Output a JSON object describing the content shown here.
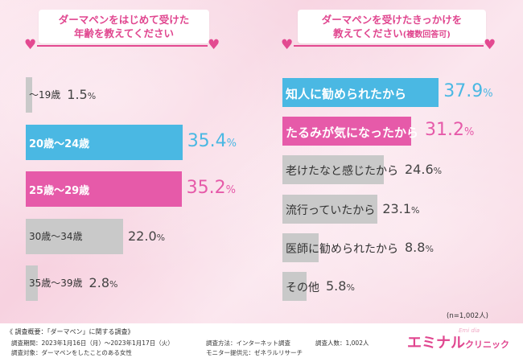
{
  "chart_data": [
    {
      "type": "bar",
      "orientation": "horizontal",
      "title_line1": "ダーマペンをはじめて受けた",
      "title_line2": "年齢を教えてください",
      "unit": "%",
      "categories": [
        "～19歳",
        "20歳～24歳",
        "25歳～29歳",
        "30歳～34歳",
        "35歳～39歳"
      ],
      "values": [
        1.5,
        35.4,
        35.2,
        22.0,
        2.8
      ],
      "value_labels": [
        "1.5",
        "35.4",
        "35.2",
        "22.0",
        "2.8"
      ],
      "bar_colors": [
        "#c9c9c9",
        "#4ab8e3",
        "#e65aa9",
        "#c9c9c9",
        "#c9c9c9"
      ],
      "xlim": [
        0,
        40
      ]
    },
    {
      "type": "bar",
      "orientation": "horizontal",
      "title_line1": "ダーマペンを受けたきっかけを",
      "title_line2": "教えてください",
      "title_suffix": "(複数回答可)",
      "unit": "%",
      "categories": [
        "知人に勧められたから",
        "たるみが気になったから",
        "老けたなと感じたから",
        "流行っていたから",
        "医師に勧められたから",
        "その他"
      ],
      "values": [
        37.9,
        31.2,
        24.6,
        23.1,
        8.8,
        5.8
      ],
      "value_labels": [
        "37.9",
        "31.2",
        "24.6",
        "23.1",
        "8.8",
        "5.8"
      ],
      "bar_colors": [
        "#4ab8e3",
        "#e65aa9",
        "#c9c9c9",
        "#c9c9c9",
        "#c9c9c9",
        "#c9c9c9"
      ],
      "xlim": [
        0,
        40
      ],
      "note": "(n=1,002人)"
    }
  ],
  "footer": {
    "title": "《 調査概要：「ダーマペン」に関する調査》",
    "period": "調査期間：2023年1月16日（月）～2023年1月17日（火）",
    "target": "調査対象：ダーマペンをしたことのある女性",
    "method": "調査方法：インターネット調査",
    "monitor": "モニター提供元：ゼネラルリサーチ",
    "count": "調査人数：1,002人"
  },
  "logo": {
    "main": "エミナル",
    "sub": "クリニック",
    "tag": "Emi dia"
  }
}
